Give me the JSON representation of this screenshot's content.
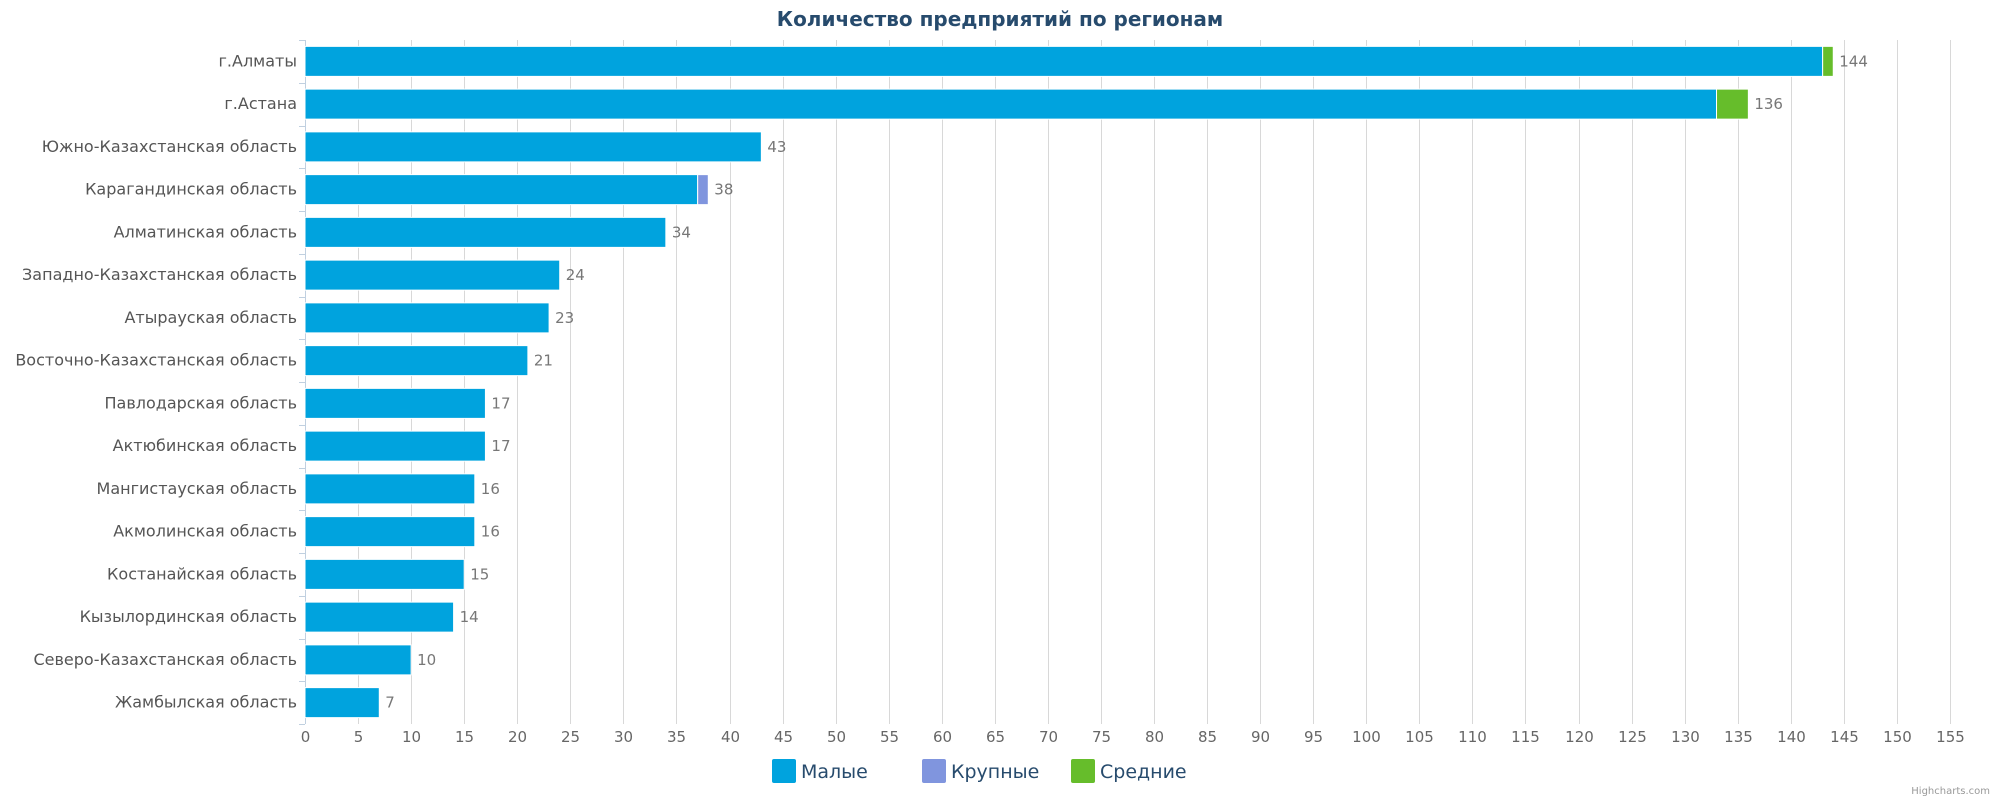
{
  "chart_data": {
    "type": "bar",
    "orientation": "horizontal",
    "stacked": true,
    "title": "Количество предприятий по регионам",
    "categories": [
      "г.Алматы",
      "г.Астана",
      "Южно-Казахстанская область",
      "Карагандинская область",
      "Алматинская область",
      "Западно-Казахстанская область",
      "Атырауская область",
      "Восточно-Казахстанская область",
      "Павлодарская область",
      "Актюбинская область",
      "Мангистауская область",
      "Акмолинская область",
      "Костанайская область",
      "Кызылординская область",
      "Северо-Казахстанская область",
      "Жамбылская область"
    ],
    "series": [
      {
        "name": "Малые",
        "color": "#00a3de",
        "values": [
          143,
          133,
          43,
          37,
          34,
          24,
          23,
          21,
          17,
          17,
          16,
          16,
          15,
          14,
          10,
          7
        ]
      },
      {
        "name": "Крупные",
        "color": "#8095de",
        "values": [
          0,
          0,
          0,
          1,
          0,
          0,
          0,
          0,
          0,
          0,
          0,
          0,
          0,
          0,
          0,
          0
        ]
      },
      {
        "name": "Средние",
        "color": "#66bd2b",
        "values": [
          1,
          3,
          0,
          0,
          0,
          0,
          0,
          0,
          0,
          0,
          0,
          0,
          0,
          0,
          0,
          0
        ]
      }
    ],
    "totals": [
      144,
      136,
      43,
      38,
      34,
      24,
      23,
      21,
      17,
      17,
      16,
      16,
      15,
      14,
      10,
      7
    ],
    "xlim": [
      0,
      155
    ],
    "xticks": [
      0,
      5,
      10,
      15,
      20,
      25,
      30,
      35,
      40,
      45,
      50,
      55,
      60,
      65,
      70,
      75,
      80,
      85,
      90,
      95,
      100,
      105,
      110,
      115,
      120,
      125,
      130,
      135,
      140,
      145,
      150,
      155
    ],
    "grid": true,
    "legend_position": "bottom-center"
  },
  "credit": "Highcharts.com"
}
